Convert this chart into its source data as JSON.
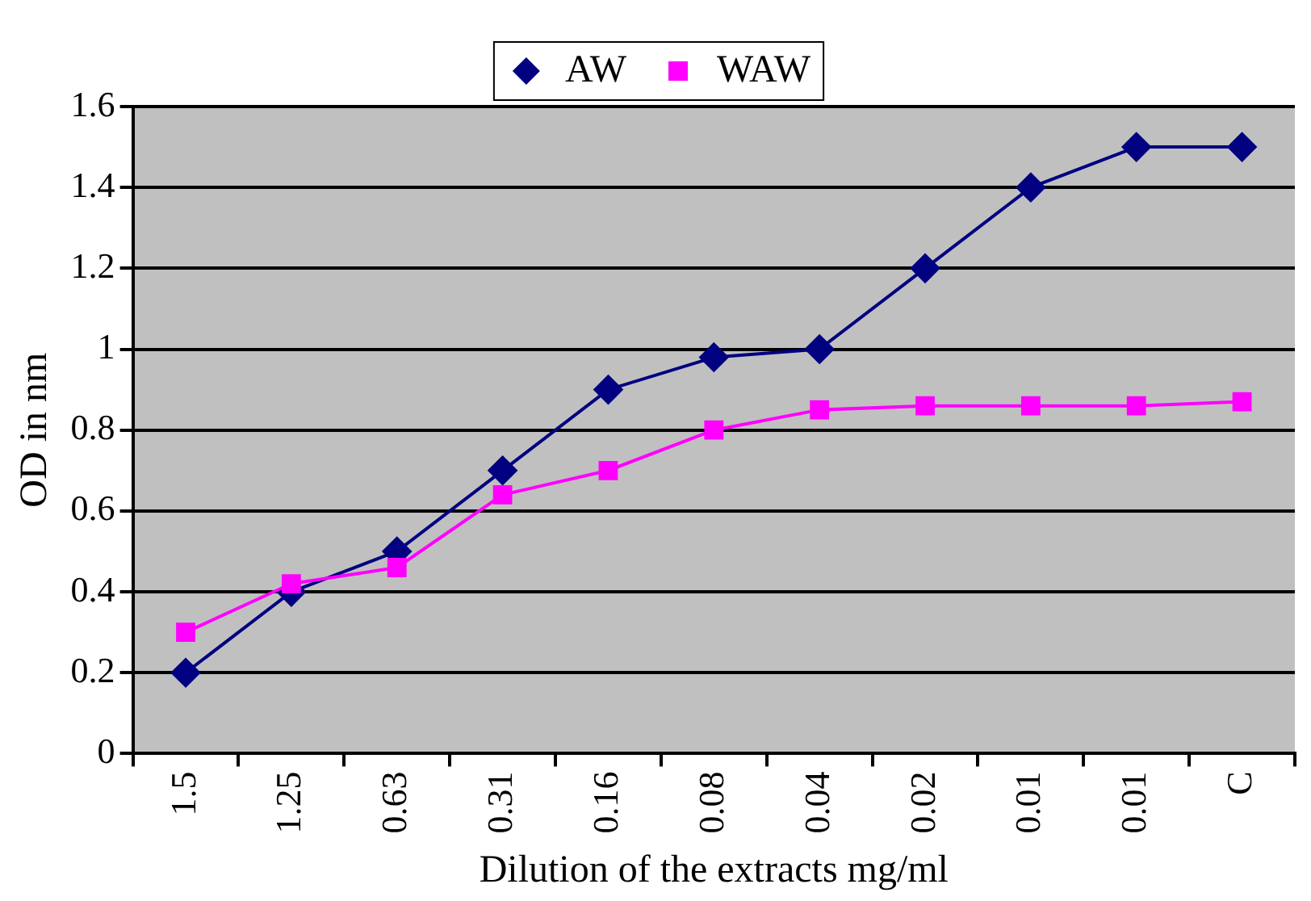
{
  "chart_data": {
    "type": "line",
    "xlabel": "Dilution of the extracts mg/ml",
    "ylabel": "OD in nm",
    "categories": [
      "1.5",
      "1.25",
      "0.63",
      "0.31",
      "0.16",
      "0.08",
      "0.04",
      "0.02",
      "0.01",
      "0.01",
      "C"
    ],
    "series": [
      {
        "name": "AW",
        "color": "#000080",
        "marker": "diamond",
        "values": [
          0.2,
          0.4,
          0.5,
          0.7,
          0.9,
          0.98,
          1.0,
          1.2,
          1.4,
          1.5,
          1.5
        ]
      },
      {
        "name": "WAW",
        "color": "#ff00ff",
        "marker": "square",
        "values": [
          0.3,
          0.42,
          0.46,
          0.64,
          0.7,
          0.8,
          0.85,
          0.86,
          0.86,
          0.86,
          0.87
        ]
      }
    ],
    "ylim": [
      0,
      1.6
    ],
    "yticks": [
      0,
      0.2,
      0.4,
      0.6,
      0.8,
      1,
      1.2,
      1.4,
      1.6
    ],
    "grid": "y",
    "legend": "top"
  }
}
